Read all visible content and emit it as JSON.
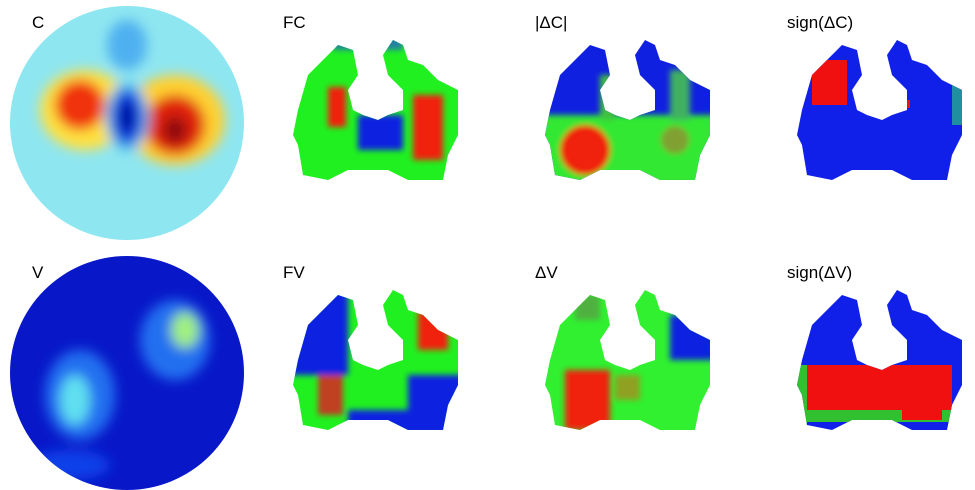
{
  "panels": [
    {
      "label": "C"
    },
    {
      "label": "FC"
    },
    {
      "label": "|ΔC|"
    },
    {
      "label": "sign(ΔC)"
    },
    {
      "label": "V"
    },
    {
      "label": "FV"
    },
    {
      "label": "ΔV"
    },
    {
      "label": "sign(ΔV)"
    }
  ]
}
